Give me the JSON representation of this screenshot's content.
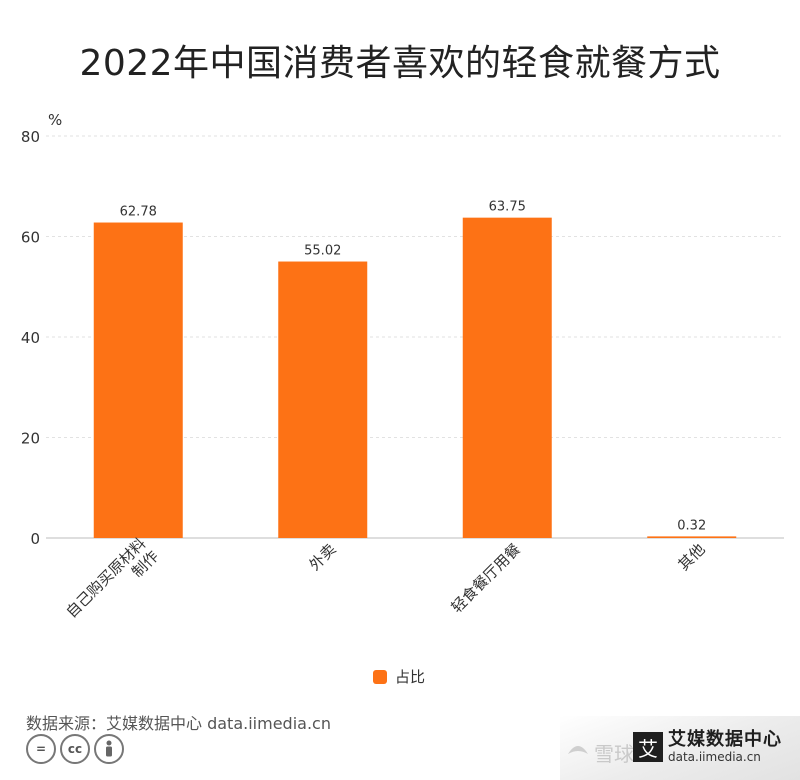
{
  "title": "2022年中国消费者喜欢的轻食就餐方式",
  "chart_data": {
    "type": "bar",
    "title": "2022年中国消费者喜欢的轻食就餐方式",
    "ylabel": "%",
    "xlabel": "",
    "ylim": [
      0,
      80
    ],
    "yticks": [
      "0",
      "20",
      "40",
      "60",
      "80"
    ],
    "grid": true,
    "categories": [
      "自己购买原材料制作",
      "外卖",
      "轻食餐厅用餐",
      "其他"
    ],
    "series": [
      {
        "name": "占比",
        "values": [
          62.78,
          55.02,
          63.75,
          0.32
        ],
        "color": "#fd7215"
      }
    ],
    "data_labels": [
      "62.78",
      "55.02",
      "63.75",
      "0.32"
    ],
    "legend_position": "bottom"
  },
  "source": "数据来源：艾媒数据中心 data.iimedia.cn",
  "license_icons": [
    "equal-icon",
    "cc-icon",
    "person-icon"
  ],
  "watermark": {
    "text": "雪球",
    "icon": "snowball-icon"
  },
  "brand": {
    "mark": "艾",
    "name": "艾媒数据中心",
    "url": "data.iimedia.cn"
  }
}
